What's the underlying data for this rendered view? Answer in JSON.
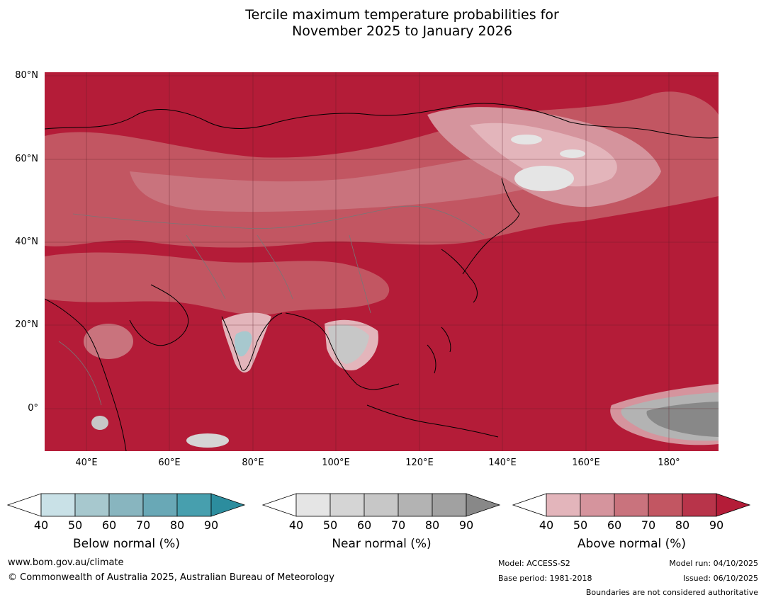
{
  "title": {
    "line1": "Tercile maximum temperature probabilities for",
    "line2": "November 2025 to January 2026"
  },
  "map": {
    "lat_labels": [
      "80°N",
      "60°N",
      "40°N",
      "20°N",
      "0°"
    ],
    "lon_labels": [
      "40°E",
      "60°E",
      "80°E",
      "100°E",
      "120°E",
      "140°E",
      "160°E",
      "180°"
    ],
    "lon_range": [
      30,
      192
    ],
    "lat_range": [
      -10,
      81
    ]
  },
  "colorbars": [
    {
      "name": "below",
      "label": "Below normal (%)",
      "ticks": [
        "40",
        "50",
        "60",
        "70",
        "80",
        "90"
      ],
      "colors": [
        "#c9e1e7",
        "#a7c8ce",
        "#88b5bf",
        "#69a8b6",
        "#479fae",
        "#2c8d9e"
      ]
    },
    {
      "name": "near",
      "label": "Near normal (%)",
      "ticks": [
        "40",
        "50",
        "60",
        "70",
        "80",
        "90"
      ],
      "colors": [
        "#e5e5e5",
        "#d5d5d5",
        "#c7c7c7",
        "#b3b3b3",
        "#a1a1a1",
        "#888888"
      ]
    },
    {
      "name": "above",
      "label": "Above normal (%)",
      "ticks": [
        "40",
        "50",
        "60",
        "70",
        "80",
        "90"
      ],
      "colors": [
        "#e3b5bb",
        "#d5949d",
        "#c9737d",
        "#c25662",
        "#b8344a",
        "#b41c38"
      ]
    }
  ],
  "footer": {
    "website": "www.bom.gov.au/climate",
    "copyright": "© Commonwealth of Australia 2025, Australian Bureau of Meteorology",
    "model": "Model: ACCESS-S2",
    "base_period": "Base period: 1981-2018",
    "model_run": "Model run: 04/10/2025",
    "issued": "Issued: 06/10/2025",
    "disclaimer": "Boundaries are not considered authoritative"
  }
}
